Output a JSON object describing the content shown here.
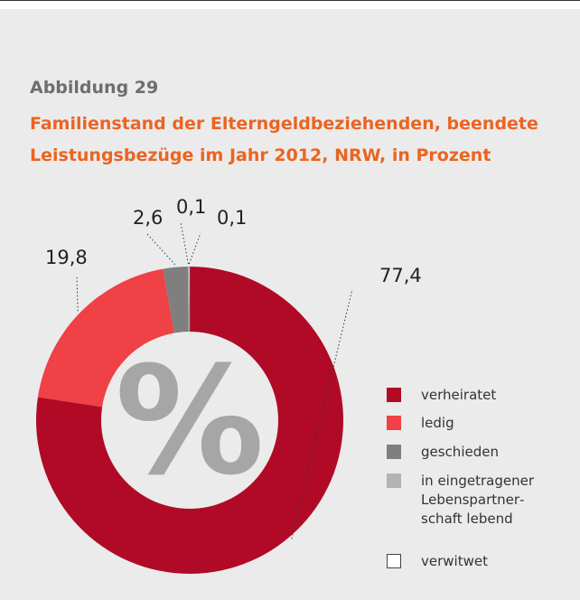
{
  "chart_data": {
    "type": "donut",
    "label": "Abbildung 29",
    "title": "Familienstand der Elterngeldbeziehenden, beendete Leistungsbezüge im Jahr 2012, NRW, in Prozent",
    "center_text": "%",
    "series": [
      {
        "name": "verheiratet",
        "color": "#b10a27",
        "value": 77.4,
        "value_label": "77,4"
      },
      {
        "name": "ledig",
        "color": "#ef4146",
        "value": 19.8,
        "value_label": "19,8"
      },
      {
        "name": "geschieden",
        "color": "#7f7f7f",
        "value": 2.6,
        "value_label": "2,6"
      },
      {
        "name": "in eingetragener Lebenspartner­schaft lebend",
        "color": "#b3b3b3",
        "value": 0.1,
        "value_label": "0,1"
      },
      {
        "name": "verwitwet",
        "color": "#ffffff",
        "value": 0.1,
        "value_label": "0,1"
      }
    ]
  }
}
